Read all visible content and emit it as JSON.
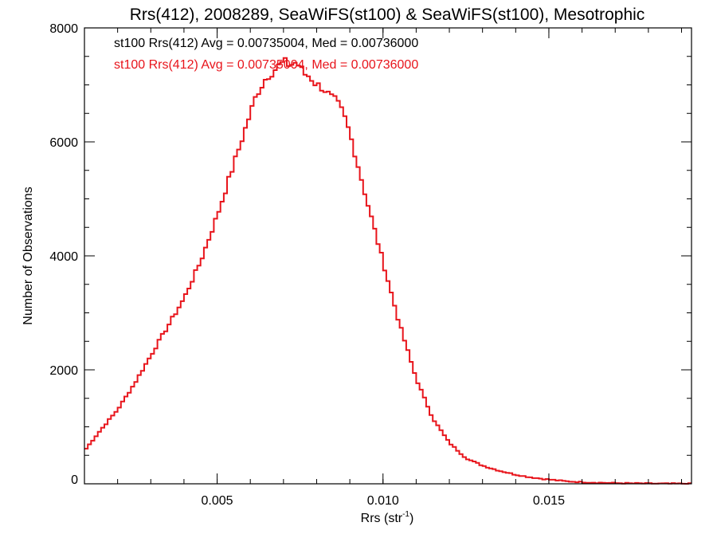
{
  "chart_data": {
    "type": "line",
    "title": "Rrs(412), 2008289, SeaWiFS(st100) & SeaWiFS(st100), Mesotrophic",
    "xlabel_main": "Rrs (str",
    "xlabel_sup": "-1",
    "xlabel_end": ")",
    "ylabel": "Number of Observations",
    "xlim": [
      0.001,
      0.0193
    ],
    "ylim": [
      0,
      8000
    ],
    "x_ticks": [
      0.005,
      0.01,
      0.015
    ],
    "x_tick_labels": [
      "0.005",
      "0.010",
      "0.015"
    ],
    "x_minor_step": 0.001,
    "y_ticks": [
      0,
      2000,
      4000,
      6000,
      8000
    ],
    "y_tick_labels": [
      "0",
      "2000",
      "4000",
      "6000",
      "8000"
    ],
    "y_minor_step": 500,
    "grid": false,
    "stats_text": [
      {
        "text": "st100 Rrs(412) Avg = 0.00735004, Med = 0.00736000",
        "color": "#000000"
      },
      {
        "text": "st100 Rrs(412) Avg = 0.00735004, Med = 0.00736000",
        "color": "#e8141b"
      }
    ],
    "series": [
      {
        "name": "st100 Rrs(412)",
        "color": "#e8141b",
        "x": [
          0.001,
          0.0015,
          0.002,
          0.0025,
          0.003,
          0.0035,
          0.004,
          0.0045,
          0.005,
          0.0055,
          0.006,
          0.0062,
          0.0065,
          0.0068,
          0.007,
          0.0072,
          0.0074,
          0.0076,
          0.0078,
          0.008,
          0.0082,
          0.0084,
          0.0086,
          0.0088,
          0.009,
          0.0092,
          0.0095,
          0.01,
          0.0105,
          0.011,
          0.0115,
          0.012,
          0.0125,
          0.013,
          0.0135,
          0.014,
          0.0145,
          0.015,
          0.0155,
          0.016,
          0.0165,
          0.017,
          0.0175,
          0.018,
          0.0185,
          0.0193
        ],
        "y": [
          580,
          950,
          1300,
          1750,
          2250,
          2750,
          3250,
          3900,
          4700,
          5600,
          6500,
          6850,
          7150,
          7300,
          7400,
          7350,
          7400,
          7200,
          7150,
          7000,
          6950,
          6800,
          6700,
          6500,
          6150,
          5700,
          5000,
          3900,
          2800,
          1850,
          1150,
          720,
          450,
          320,
          230,
          160,
          110,
          75,
          45,
          30,
          20,
          12,
          8,
          5,
          3,
          2
        ]
      }
    ]
  }
}
